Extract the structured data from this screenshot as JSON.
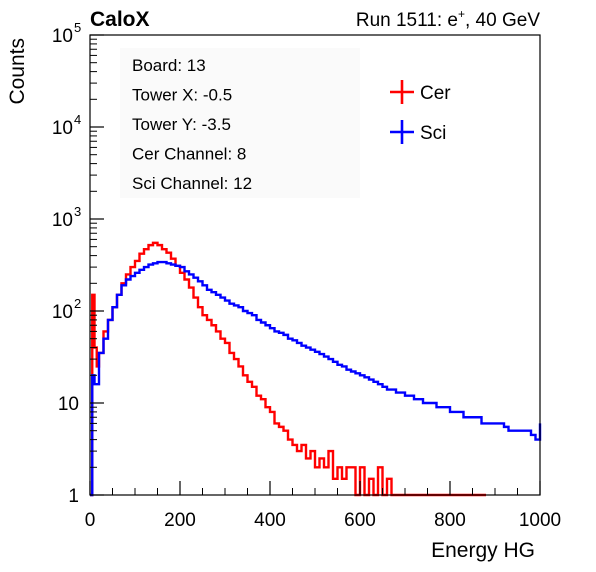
{
  "header": {
    "left_label": "CaloX",
    "right_label_prefix": "Run 1511: e",
    "right_label_sup": "+",
    "right_label_suffix": ", 40 GeV"
  },
  "info_box": {
    "lines": [
      "Board: 13",
      "Tower X: -0.5",
      "Tower Y: -3.5",
      "Cer Channel: 8",
      "Sci Channel: 12"
    ]
  },
  "colors": {
    "cer": "#ff0000",
    "sci": "#0000ff",
    "axis": "#000000"
  },
  "chart_data": {
    "type": "line",
    "drawstyle": "histogram-steps",
    "xlabel": "Energy HG",
    "ylabel": "Counts",
    "xlim": [
      0,
      1000
    ],
    "ylim": [
      1,
      100000
    ],
    "yscale": "log",
    "x_ticks": [
      0,
      200,
      400,
      600,
      800,
      1000
    ],
    "y_ticks": [
      {
        "value": 1,
        "base": "1",
        "exp": ""
      },
      {
        "value": 10,
        "base": "10",
        "exp": ""
      },
      {
        "value": 100,
        "base": "10",
        "exp": "2"
      },
      {
        "value": 1000,
        "base": "10",
        "exp": "3"
      },
      {
        "value": 10000,
        "base": "10",
        "exp": "4"
      },
      {
        "value": 100000,
        "base": "10",
        "exp": "5"
      }
    ],
    "legend_position": "top-right",
    "series": [
      {
        "name": "Cer",
        "color": "#ff0000",
        "points": [
          [
            0,
            1
          ],
          [
            5,
            150
          ],
          [
            10,
            40
          ],
          [
            15,
            25
          ],
          [
            20,
            35
          ],
          [
            30,
            60
          ],
          [
            40,
            80
          ],
          [
            50,
            110
          ],
          [
            60,
            150
          ],
          [
            70,
            200
          ],
          [
            80,
            250
          ],
          [
            90,
            300
          ],
          [
            100,
            350
          ],
          [
            110,
            420
          ],
          [
            120,
            470
          ],
          [
            130,
            520
          ],
          [
            140,
            550
          ],
          [
            150,
            520
          ],
          [
            160,
            470
          ],
          [
            170,
            430
          ],
          [
            180,
            370
          ],
          [
            190,
            310
          ],
          [
            200,
            260
          ],
          [
            210,
            220
          ],
          [
            220,
            180
          ],
          [
            230,
            140
          ],
          [
            240,
            110
          ],
          [
            250,
            90
          ],
          [
            260,
            80
          ],
          [
            270,
            70
          ],
          [
            280,
            60
          ],
          [
            290,
            50
          ],
          [
            300,
            45
          ],
          [
            310,
            35
          ],
          [
            320,
            30
          ],
          [
            330,
            25
          ],
          [
            340,
            20
          ],
          [
            350,
            17
          ],
          [
            360,
            15
          ],
          [
            370,
            12
          ],
          [
            380,
            11
          ],
          [
            390,
            9
          ],
          [
            400,
            8
          ],
          [
            410,
            6
          ],
          [
            420,
            5.5
          ],
          [
            430,
            5
          ],
          [
            440,
            4
          ],
          [
            450,
            3.5
          ],
          [
            460,
            3
          ],
          [
            470,
            3.5
          ],
          [
            480,
            2.5
          ],
          [
            490,
            3
          ],
          [
            500,
            2
          ],
          [
            510,
            2.5
          ],
          [
            520,
            2
          ],
          [
            530,
            3
          ],
          [
            540,
            1.5
          ],
          [
            550,
            2
          ],
          [
            560,
            1.5
          ],
          [
            570,
            2
          ],
          [
            580,
            2
          ],
          [
            590,
            1
          ],
          [
            600,
            2
          ],
          [
            610,
            1
          ],
          [
            620,
            1.5
          ],
          [
            630,
            1
          ],
          [
            640,
            2
          ],
          [
            650,
            1
          ],
          [
            660,
            1.5
          ],
          [
            670,
            1
          ],
          [
            680,
            1
          ],
          [
            690,
            1
          ],
          [
            700,
            1
          ],
          [
            710,
            1
          ],
          [
            720,
            1
          ],
          [
            730,
            1
          ],
          [
            740,
            1
          ],
          [
            750,
            1
          ],
          [
            760,
            1
          ],
          [
            770,
            1
          ],
          [
            780,
            1
          ],
          [
            790,
            1
          ],
          [
            800,
            1
          ],
          [
            810,
            1
          ],
          [
            820,
            1
          ],
          [
            830,
            1
          ],
          [
            840,
            1
          ],
          [
            850,
            1
          ],
          [
            860,
            1
          ],
          [
            870,
            1
          ]
        ]
      },
      {
        "name": "Sci",
        "color": "#0000ff",
        "points": [
          [
            0,
            1
          ],
          [
            5,
            20
          ],
          [
            10,
            16
          ],
          [
            20,
            35
          ],
          [
            30,
            50
          ],
          [
            40,
            80
          ],
          [
            50,
            110
          ],
          [
            60,
            150
          ],
          [
            70,
            190
          ],
          [
            80,
            220
          ],
          [
            90,
            240
          ],
          [
            100,
            260
          ],
          [
            110,
            280
          ],
          [
            120,
            300
          ],
          [
            130,
            320
          ],
          [
            140,
            330
          ],
          [
            150,
            340
          ],
          [
            160,
            340
          ],
          [
            170,
            330
          ],
          [
            180,
            320
          ],
          [
            190,
            310
          ],
          [
            200,
            300
          ],
          [
            210,
            270
          ],
          [
            220,
            250
          ],
          [
            230,
            230
          ],
          [
            240,
            210
          ],
          [
            250,
            190
          ],
          [
            260,
            170
          ],
          [
            270,
            160
          ],
          [
            280,
            150
          ],
          [
            290,
            140
          ],
          [
            300,
            130
          ],
          [
            310,
            120
          ],
          [
            320,
            115
          ],
          [
            330,
            110
          ],
          [
            340,
            100
          ],
          [
            350,
            95
          ],
          [
            360,
            90
          ],
          [
            370,
            80
          ],
          [
            380,
            75
          ],
          [
            390,
            70
          ],
          [
            400,
            65
          ],
          [
            410,
            60
          ],
          [
            420,
            58
          ],
          [
            430,
            55
          ],
          [
            440,
            50
          ],
          [
            450,
            48
          ],
          [
            460,
            45
          ],
          [
            470,
            42
          ],
          [
            480,
            40
          ],
          [
            490,
            38
          ],
          [
            500,
            36
          ],
          [
            510,
            34
          ],
          [
            520,
            32
          ],
          [
            530,
            30
          ],
          [
            540,
            28
          ],
          [
            550,
            26
          ],
          [
            560,
            25
          ],
          [
            570,
            23
          ],
          [
            580,
            22
          ],
          [
            590,
            21
          ],
          [
            600,
            20
          ],
          [
            610,
            19
          ],
          [
            620,
            18
          ],
          [
            630,
            17
          ],
          [
            640,
            16
          ],
          [
            650,
            15
          ],
          [
            660,
            14
          ],
          [
            670,
            14
          ],
          [
            680,
            13
          ],
          [
            690,
            13
          ],
          [
            700,
            12
          ],
          [
            710,
            12
          ],
          [
            720,
            11
          ],
          [
            730,
            11
          ],
          [
            740,
            10
          ],
          [
            750,
            10
          ],
          [
            760,
            10
          ],
          [
            770,
            9
          ],
          [
            780,
            9
          ],
          [
            790,
            9
          ],
          [
            800,
            8
          ],
          [
            810,
            8
          ],
          [
            820,
            8
          ],
          [
            830,
            7
          ],
          [
            840,
            7
          ],
          [
            850,
            7
          ],
          [
            860,
            7
          ],
          [
            870,
            6
          ],
          [
            880,
            6
          ],
          [
            890,
            6
          ],
          [
            900,
            6
          ],
          [
            910,
            6
          ],
          [
            920,
            5.5
          ],
          [
            930,
            5
          ],
          [
            940,
            5
          ],
          [
            950,
            5
          ],
          [
            960,
            5
          ],
          [
            970,
            5
          ],
          [
            980,
            4.5
          ],
          [
            990,
            4
          ],
          [
            1000,
            6
          ]
        ]
      }
    ]
  }
}
